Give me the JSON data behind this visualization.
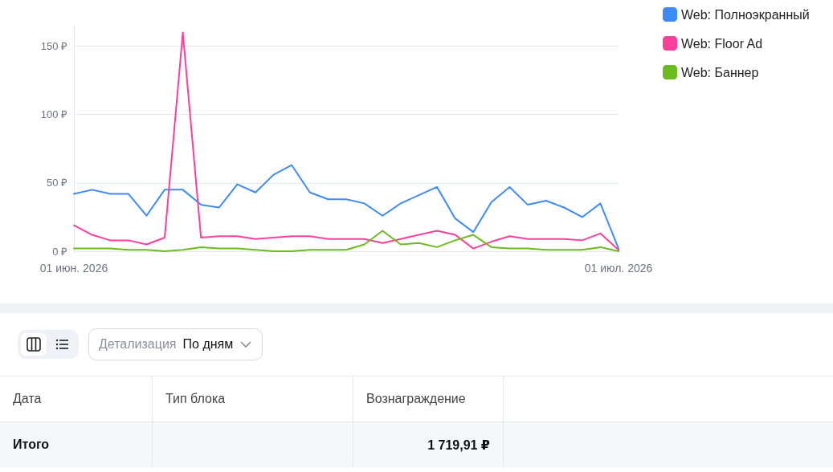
{
  "chart_data": {
    "type": "line",
    "x": [
      "2026-06-01",
      "2026-06-02",
      "2026-06-03",
      "2026-06-04",
      "2026-06-05",
      "2026-06-06",
      "2026-06-07",
      "2026-06-08",
      "2026-06-09",
      "2026-06-10",
      "2026-06-11",
      "2026-06-12",
      "2026-06-13",
      "2026-06-14",
      "2026-06-15",
      "2026-06-16",
      "2026-06-17",
      "2026-06-18",
      "2026-06-19",
      "2026-06-20",
      "2026-06-21",
      "2026-06-22",
      "2026-06-23",
      "2026-06-24",
      "2026-06-25",
      "2026-06-26",
      "2026-06-27",
      "2026-06-28",
      "2026-06-29",
      "2026-06-30",
      "2026-07-01"
    ],
    "series": [
      {
        "name": "Web: Полноэкранный",
        "color": "#3d8bf7",
        "values": [
          42,
          45,
          42,
          42,
          26,
          45,
          45,
          34,
          32,
          49,
          43,
          56,
          63,
          43,
          38,
          38,
          35,
          26,
          35,
          41,
          47,
          24,
          14,
          36,
          47,
          34,
          37,
          32,
          25,
          35,
          2
        ]
      },
      {
        "name": "Web: Floor Ad",
        "color": "#fc3f9a",
        "values": [
          19,
          12,
          8,
          8,
          5,
          10,
          160,
          10,
          11,
          11,
          9,
          10,
          11,
          11,
          9,
          9,
          9,
          6,
          9,
          12,
          15,
          12,
          2,
          7,
          11,
          9,
          9,
          9,
          8,
          13,
          1
        ]
      },
      {
        "name": "Web: Баннер",
        "color": "#6bbb1f",
        "values": [
          2,
          2,
          2,
          1,
          1,
          0,
          1,
          3,
          2,
          2,
          1,
          0,
          0,
          1,
          1,
          1,
          5,
          15,
          5,
          6,
          3,
          8,
          12,
          3,
          2,
          2,
          1,
          1,
          1,
          3,
          0
        ]
      }
    ],
    "xlim": [
      "2026-06-01",
      "2026-07-01"
    ],
    "xticks": [
      {
        "value": "2026-06-01",
        "label": "01 июн. 2026"
      },
      {
        "value": "2026-07-01",
        "label": "01 июл. 2026"
      }
    ],
    "ylim": [
      0,
      165
    ],
    "yticks": [
      {
        "value": 0,
        "label": "0 ₽"
      },
      {
        "value": 50,
        "label": "50 ₽"
      },
      {
        "value": 100,
        "label": "100 ₽"
      },
      {
        "value": 150,
        "label": "150 ₽"
      }
    ],
    "grid": "y",
    "legend": "right",
    "marker": "none",
    "line_style": "solid",
    "annotations": [
      "Детализация",
      "По дням",
      "Дата",
      "Тип блока",
      "Вознаграждение",
      "Итого",
      "1 719,91 ₽"
    ]
  }
}
